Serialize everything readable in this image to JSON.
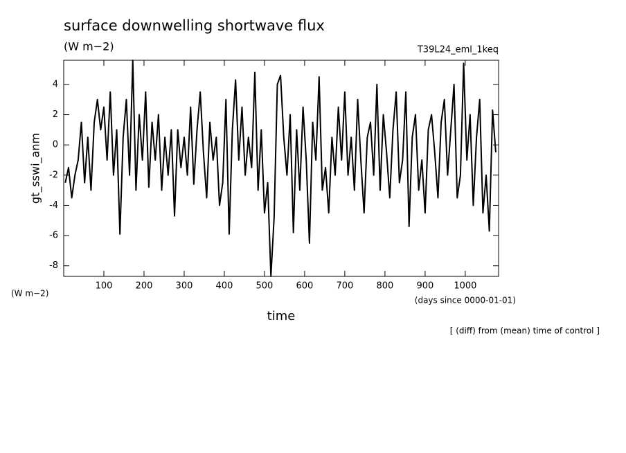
{
  "chart_data": {
    "type": "line",
    "title": "surface downwelling shortwave flux",
    "units": "(W m−2)",
    "units_left": "(W m−2)",
    "run_name": "T39L24_eml_1keq",
    "y_label": "gt_sswi_anm",
    "x_label": "time",
    "x_units": "(days since 0000-01-01)",
    "note": "[ (diff) from (mean) time of control ]",
    "xlim": [
      0,
      1083
    ],
    "ylim": [
      -8.7,
      5.6
    ],
    "xticks": [
      100,
      200,
      300,
      400,
      500,
      600,
      700,
      800,
      900,
      1000
    ],
    "yticks": [
      -8,
      -6,
      -4,
      -2,
      0,
      2,
      4
    ],
    "x": [
      4,
      12,
      20,
      28,
      36,
      44,
      52,
      60,
      68,
      76,
      84,
      92,
      100,
      108,
      116,
      124,
      132,
      140,
      148,
      156,
      164,
      172,
      180,
      188,
      196,
      204,
      212,
      220,
      228,
      236,
      244,
      252,
      260,
      268,
      276,
      284,
      292,
      300,
      308,
      316,
      324,
      332,
      340,
      348,
      356,
      364,
      372,
      380,
      388,
      396,
      404,
      412,
      420,
      428,
      436,
      444,
      452,
      460,
      468,
      476,
      484,
      492,
      500,
      508,
      516,
      524,
      532,
      540,
      548,
      556,
      564,
      572,
      580,
      588,
      596,
      604,
      612,
      620,
      628,
      636,
      644,
      652,
      660,
      668,
      676,
      684,
      692,
      700,
      708,
      716,
      724,
      732,
      740,
      748,
      756,
      764,
      772,
      780,
      788,
      796,
      804,
      812,
      820,
      828,
      836,
      844,
      852,
      860,
      868,
      876,
      884,
      892,
      900,
      908,
      916,
      924,
      932,
      940,
      948,
      956,
      964,
      972,
      980,
      988,
      996,
      1004,
      1012,
      1020,
      1028,
      1036,
      1044,
      1052,
      1060,
      1068,
      1076
    ],
    "series": [
      {
        "color": "#000000",
        "values": [
          -2.5,
          -1.5,
          -3.5,
          -2,
          -1,
          1.5,
          -2.5,
          0.5,
          -3,
          1.5,
          3,
          1,
          2.5,
          -1,
          3.5,
          -2,
          1,
          -5.9,
          0.5,
          3,
          -2,
          5.6,
          -3,
          2,
          -1,
          3.5,
          -2.8,
          1.5,
          -1,
          2,
          -3,
          0.5,
          -2,
          1,
          -4.7,
          1,
          -1.5,
          0.5,
          -2,
          2.5,
          -2.6,
          1,
          3.5,
          -0.5,
          -3.5,
          1.5,
          -1,
          0.5,
          -4,
          -2.5,
          3,
          -5.9,
          1,
          4.3,
          -1,
          2.5,
          -2,
          0.5,
          -1.5,
          4.8,
          -3,
          1,
          -4.5,
          -2.5,
          -8.7,
          -4.8,
          4,
          4.6,
          0.5,
          -2,
          2,
          -5.8,
          1,
          -3,
          2.5,
          -1,
          -6.5,
          1.5,
          -1,
          4.5,
          -3,
          -1.5,
          -4.5,
          0.5,
          -2,
          2.5,
          -1,
          3.5,
          -2,
          0.5,
          -3,
          3,
          -1,
          -4.5,
          0.5,
          1.5,
          -2,
          4,
          -3,
          2,
          -0.5,
          -3.5,
          1,
          3.5,
          -2.5,
          -1,
          3.5,
          -5.4,
          0.5,
          2,
          -3,
          -1,
          -4.5,
          1,
          2,
          -0.5,
          -3.5,
          1.5,
          3,
          -2,
          1,
          4,
          -3.5,
          -2,
          5.4,
          -1,
          2,
          -4,
          0.5,
          3,
          -4.5,
          -2,
          -5.7,
          2.3,
          -0.5
        ]
      }
    ]
  }
}
